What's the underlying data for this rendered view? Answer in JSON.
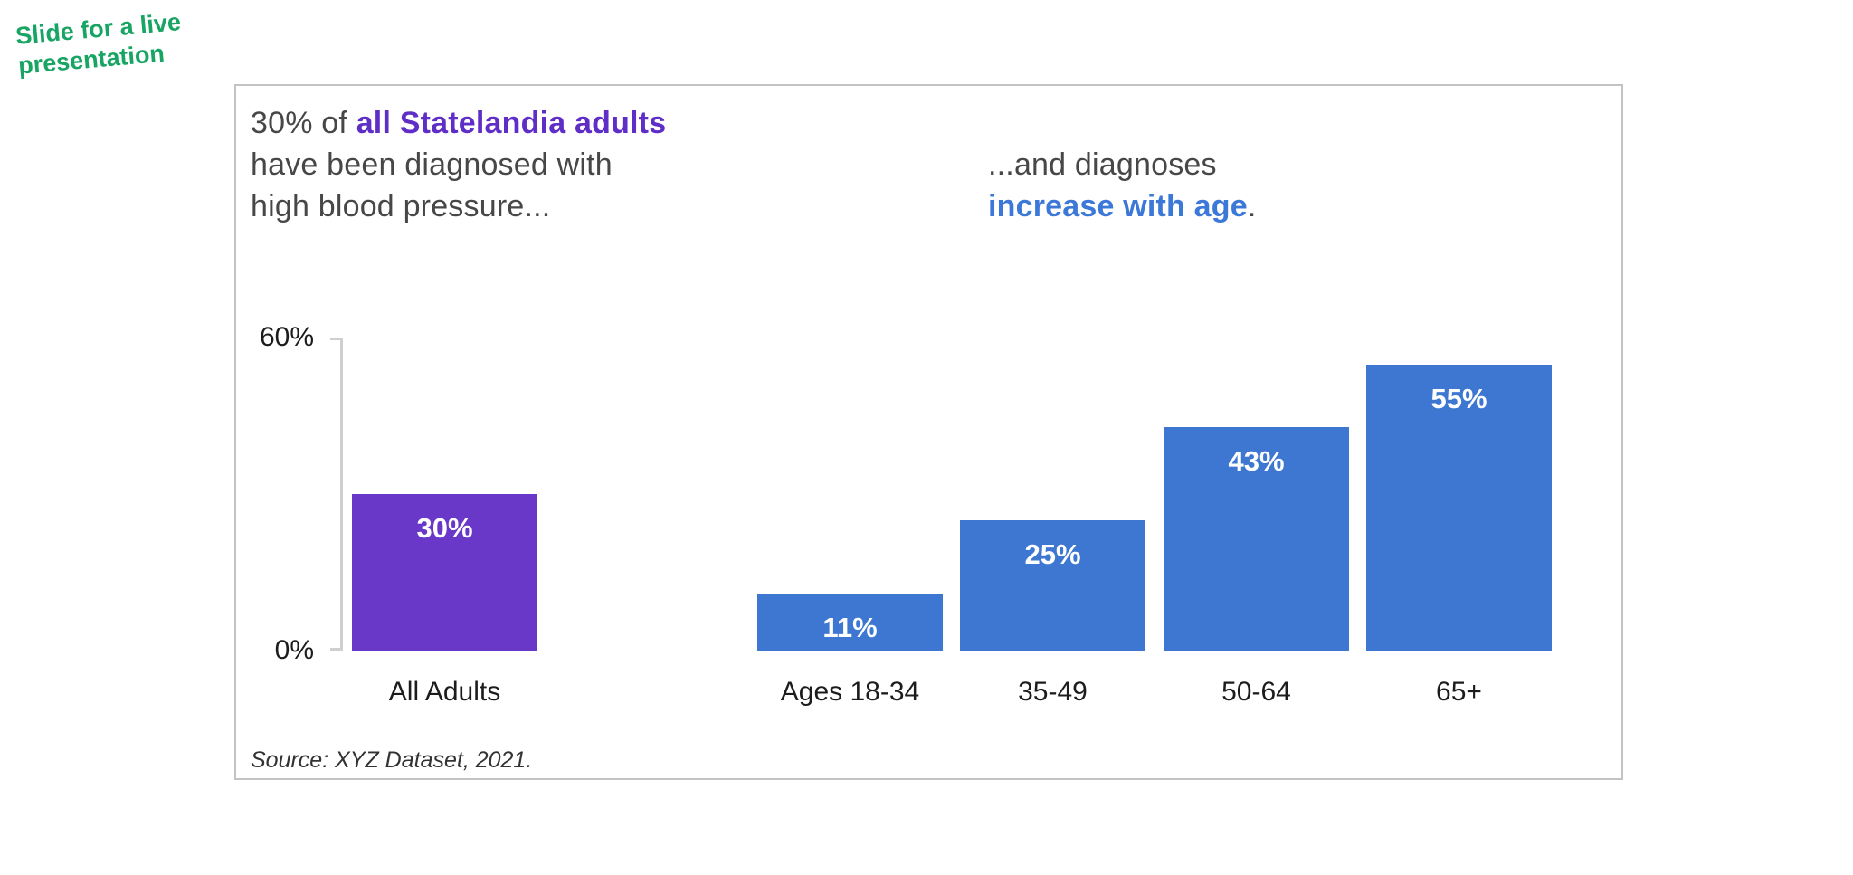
{
  "annotation": {
    "lines": [
      "Slide for a live",
      "presentation"
    ],
    "color": "#18A564"
  },
  "card": {
    "heading_left": {
      "line1_normal": "30% of ",
      "line1_bold": "all Statelandia adults",
      "line2": "have been diagnosed with",
      "line3": "high blood pressure..."
    },
    "heading_right": {
      "line1": "...and diagnoses",
      "line2_bold": "increase with age",
      "line2_suffix": "."
    },
    "source": "Source: XYZ Dataset, 2021."
  },
  "chart_data": {
    "type": "bar",
    "title": "",
    "xlabel": "",
    "ylabel": "",
    "ylim": [
      0,
      60
    ],
    "grid": false,
    "legend": false,
    "axis": {
      "top_label": "60%",
      "bottom_label": "0%"
    },
    "categories": [
      "All Adults",
      "Ages 18-34",
      "35-49",
      "50-64",
      "65+"
    ],
    "values": [
      30,
      11,
      25,
      43,
      55
    ],
    "bars": [
      {
        "category": "All Adults",
        "value": 30,
        "display_value": "30%",
        "color": "#6A38C8"
      },
      {
        "category": "Ages 18-34",
        "value": 11,
        "display_value": "11%",
        "color": "#3D77D2"
      },
      {
        "category": "35-49",
        "value": 25,
        "display_value": "25%",
        "color": "#3D77D2"
      },
      {
        "category": "50-64",
        "value": 43,
        "display_value": "43%",
        "color": "#3D77D2"
      },
      {
        "category": "65+",
        "value": 55,
        "display_value": "55%",
        "color": "#3D77D2"
      }
    ]
  },
  "colors": {
    "annotation_green": "#18A564",
    "heading_purple": "#5E2EC7",
    "heading_blue": "#3C78D8",
    "bar_purple": "#6A38C8",
    "bar_blue": "#3D77D2",
    "axis_gray": "#CFCFCF",
    "border_gray": "#C3C3C3"
  }
}
